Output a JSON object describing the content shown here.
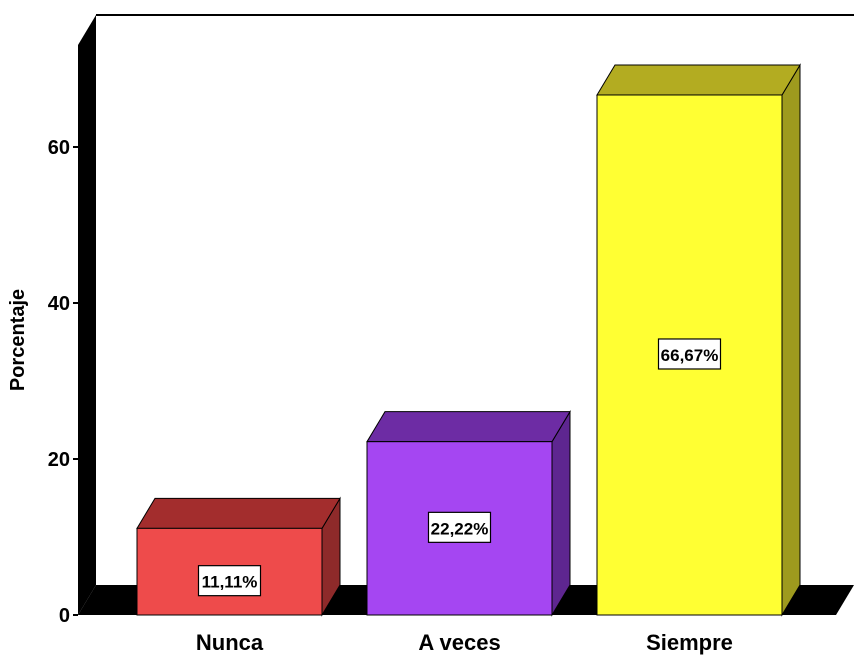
{
  "chart_data": {
    "type": "bar",
    "categories": [
      "Nunca",
      "A veces",
      "Siempre"
    ],
    "values": [
      11.11,
      22.22,
      66.67
    ],
    "data_labels": [
      "11,11%",
      "22,22%",
      "66,67%"
    ],
    "ylabel": "Porcentaje",
    "xlabel": "",
    "ylim": [
      0,
      80
    ],
    "yticks": [
      "0",
      "20",
      "40",
      "60"
    ],
    "grid": false,
    "three_d": true,
    "colors": {
      "front": [
        "#ee4b4b",
        "#a546f2",
        "#ffff33"
      ],
      "top": [
        "#a32d2d",
        "#6d2ca4",
        "#b3ac21"
      ],
      "side": [
        "#8e2a2a",
        "#5e2690",
        "#9e9a1e"
      ],
      "axis_wall": "#000000"
    }
  }
}
